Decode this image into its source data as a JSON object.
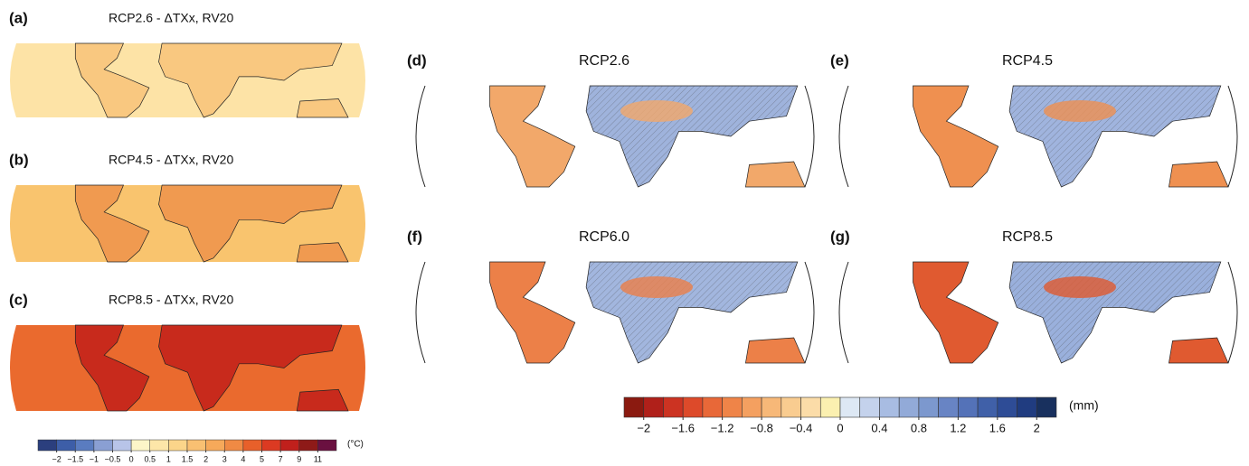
{
  "left": {
    "panels": [
      {
        "label": "(a)",
        "title": "RCP2.6 - ΔTXx, RV20"
      },
      {
        "label": "(b)",
        "title": "RCP4.5 - ΔTXx, RV20"
      },
      {
        "label": "(c)",
        "title": "RCP8.5 - ΔTXx, RV20"
      }
    ],
    "colorbar": {
      "colors": [
        "#2b3f7e",
        "#3d5ea8",
        "#5a7cc0",
        "#8a9fd3",
        "#b8c4e8",
        "#fdf6c8",
        "#fde6a8",
        "#fbd58a",
        "#f9c072",
        "#f6a95a",
        "#f08a44",
        "#e8602a",
        "#dc3a22",
        "#c0201c",
        "#8e1a18",
        "#6a1040"
      ],
      "ticks": [
        {
          "value": -2,
          "label": "−2"
        },
        {
          "value": -1.5,
          "label": "−1.5"
        },
        {
          "value": -1,
          "label": "−1"
        },
        {
          "value": -0.5,
          "label": "−0.5"
        },
        0,
        0.5,
        1,
        1.5,
        2,
        3,
        4,
        5,
        7,
        9,
        11
      ],
      "unit": "(°C)"
    }
  },
  "right": {
    "panels": [
      {
        "label": "(d)",
        "title": "RCP2.6"
      },
      {
        "label": "(e)",
        "title": "RCP4.5"
      },
      {
        "label": "(f)",
        "title": "RCP6.0"
      },
      {
        "label": "(g)",
        "title": "RCP8.5"
      }
    ],
    "colorbar": {
      "range": [
        -2.2,
        2.2
      ],
      "colors": [
        "#8b1a10",
        "#b0201a",
        "#cc3322",
        "#dd4a2a",
        "#e86838",
        "#ef8448",
        "#f4a060",
        "#f7b878",
        "#f9cc90",
        "#fbdca8",
        "#fbf0b0",
        "#dde8f4",
        "#c4d2ec",
        "#a8bce2",
        "#92aad8",
        "#7c98ce",
        "#6884c4",
        "#5472b8",
        "#4060a8",
        "#2e4c96",
        "#203c80",
        "#18305e"
      ],
      "ticks": [
        {
          "value": -2,
          "label": "−2"
        },
        {
          "value": -1.6,
          "label": "−1.6"
        },
        {
          "value": -1.2,
          "label": "−1.2"
        },
        {
          "value": -0.8,
          "label": "−0.8"
        },
        {
          "value": -0.4,
          "label": "−0.4"
        },
        0,
        0.4,
        0.8,
        1.2,
        1.6,
        2
      ],
      "unit": "(mm)"
    }
  }
}
